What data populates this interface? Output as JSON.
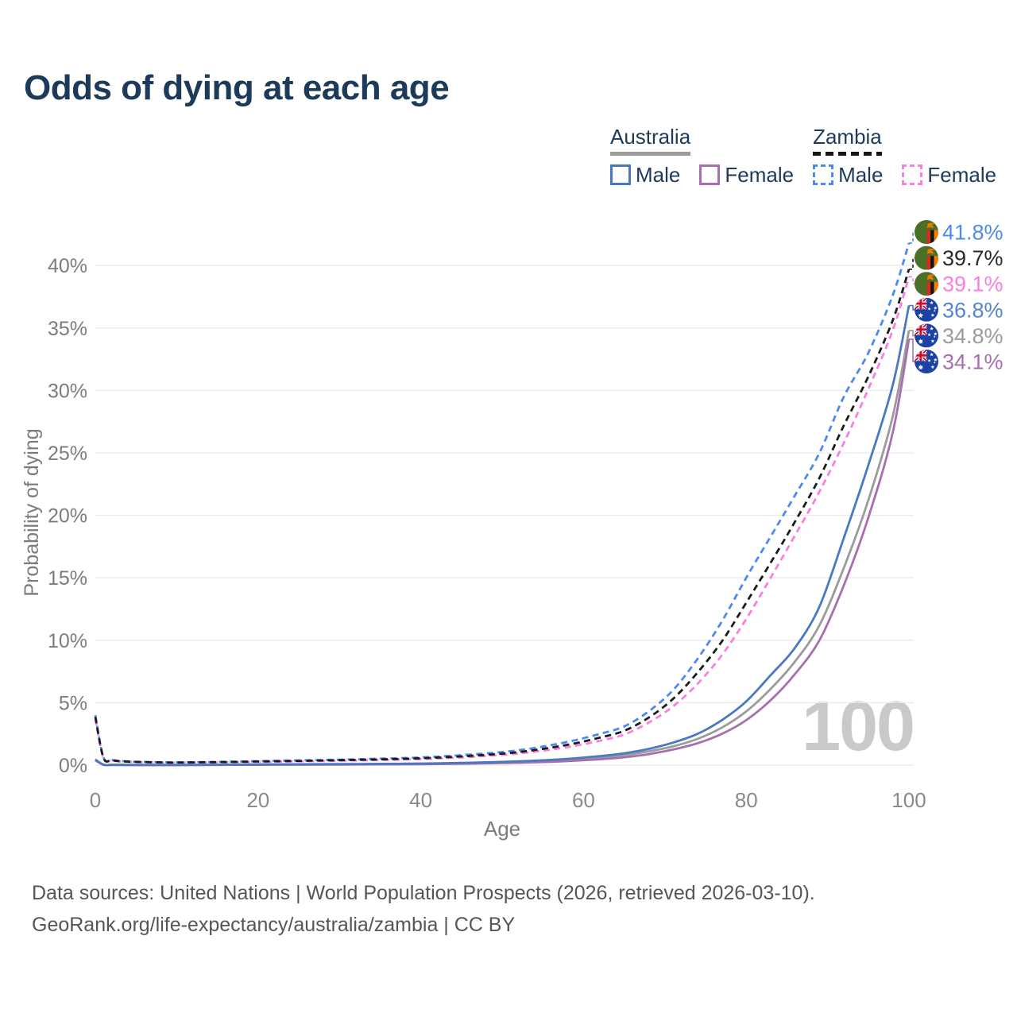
{
  "title": "Odds of dying at each age",
  "watermark": "100",
  "footer": {
    "line1": "Data sources: United Nations | World Population Prospects (2026, retrieved 2026-03-10).",
    "line2": "GeoRank.org/life-expectancy/australia/zambia | CC BY"
  },
  "legend": {
    "groups": [
      {
        "id": "australia",
        "label": "Australia",
        "line_style": "solid",
        "underline_color": "#9b9b9b",
        "items": [
          {
            "id": "australia-male",
            "label": "Male",
            "color": "#4a79c2"
          },
          {
            "id": "australia-female",
            "label": "Female",
            "color": "#a76fae"
          }
        ]
      },
      {
        "id": "zambia",
        "label": "Zambia",
        "line_style": "dashed",
        "underline_color": "#161616",
        "items": [
          {
            "id": "zambia-male",
            "label": "Male",
            "color": "#4d8af0"
          },
          {
            "id": "zambia-female",
            "label": "Female",
            "color": "#f97fe0"
          }
        ]
      }
    ]
  },
  "chart_data": {
    "type": "line",
    "title": "Odds of dying at each age",
    "xlabel": "Age",
    "ylabel": "Probability of dying",
    "xlim": [
      0,
      100
    ],
    "ylim": [
      0,
      43
    ],
    "xticks": [
      0,
      20,
      40,
      60,
      80,
      100
    ],
    "yticks": [
      0,
      5,
      10,
      15,
      20,
      25,
      30,
      35,
      40
    ],
    "ytick_suffix": "%",
    "grid": "horizontal-only",
    "legend_position": "top-right",
    "x": [
      0,
      1,
      2,
      3,
      5,
      8,
      10,
      15,
      20,
      25,
      30,
      35,
      40,
      45,
      50,
      53,
      56,
      59,
      62,
      65,
      68,
      71,
      74,
      77,
      80,
      83,
      86,
      89,
      92,
      95,
      98,
      100
    ],
    "series": [
      {
        "id": "zambia-male",
        "name": "Zambia — Male",
        "country": "Zambia",
        "sex": "Male",
        "color": "#4d8af0",
        "dash": true,
        "flag": "zambia",
        "end_label": "41.8%",
        "label_color": "#4d8af0",
        "values": [
          4.0,
          0.62,
          0.42,
          0.34,
          0.27,
          0.23,
          0.22,
          0.26,
          0.32,
          0.38,
          0.44,
          0.52,
          0.62,
          0.8,
          1.05,
          1.28,
          1.6,
          2.0,
          2.5,
          3.1,
          4.3,
          6.0,
          8.5,
          11.5,
          15.0,
          18.3,
          21.6,
          25.0,
          29.5,
          33.0,
          37.6,
          41.8
        ]
      },
      {
        "id": "zambia-both",
        "name": "Zambia — Both sexes",
        "country": "Zambia",
        "sex": "Both sexes",
        "color": "#1c1c1c",
        "dash": true,
        "flag": "zambia",
        "end_label": "39.7%",
        "label_color": "#2a2a2a",
        "values": [
          3.85,
          0.59,
          0.4,
          0.32,
          0.26,
          0.22,
          0.21,
          0.24,
          0.29,
          0.34,
          0.4,
          0.46,
          0.55,
          0.7,
          0.92,
          1.12,
          1.4,
          1.75,
          2.2,
          2.75,
          3.8,
          5.3,
          7.4,
          9.9,
          13.0,
          16.2,
          19.5,
          23.0,
          27.2,
          31.1,
          35.6,
          39.7
        ]
      },
      {
        "id": "zambia-female",
        "name": "Zambia — Female",
        "country": "Zambia",
        "sex": "Female",
        "color": "#f97fe0",
        "dash": true,
        "flag": "zambia",
        "end_label": "39.1%",
        "label_color": "#f97fe0",
        "values": [
          3.7,
          0.56,
          0.38,
          0.3,
          0.24,
          0.2,
          0.19,
          0.22,
          0.26,
          0.3,
          0.35,
          0.41,
          0.49,
          0.62,
          0.82,
          1.0,
          1.25,
          1.55,
          1.95,
          2.45,
          3.4,
          4.7,
          6.5,
          8.8,
          11.7,
          15.0,
          18.4,
          21.9,
          25.8,
          30.1,
          34.8,
          39.1
        ]
      },
      {
        "id": "australia-male",
        "name": "Australia — Male",
        "country": "Australia",
        "sex": "Male",
        "color": "#4a79c2",
        "dash": false,
        "flag": "australia",
        "end_label": "36.8%",
        "label_color": "#5585cb",
        "values": [
          0.45,
          0.04,
          0.025,
          0.02,
          0.015,
          0.012,
          0.012,
          0.03,
          0.06,
          0.07,
          0.08,
          0.1,
          0.13,
          0.18,
          0.26,
          0.33,
          0.42,
          0.55,
          0.72,
          0.95,
          1.3,
          1.8,
          2.5,
          3.6,
          5.1,
          7.2,
          9.4,
          12.7,
          18.2,
          24.0,
          30.4,
          36.8
        ]
      },
      {
        "id": "australia-both",
        "name": "Australia — Both sexes",
        "country": "Australia",
        "sex": "Both sexes",
        "color": "#9b9b9b",
        "dash": false,
        "flag": "australia",
        "end_label": "34.8%",
        "label_color": "#9b9b9b",
        "values": [
          0.42,
          0.035,
          0.022,
          0.018,
          0.013,
          0.01,
          0.01,
          0.022,
          0.042,
          0.052,
          0.062,
          0.08,
          0.105,
          0.15,
          0.215,
          0.27,
          0.35,
          0.46,
          0.6,
          0.8,
          1.1,
          1.5,
          2.1,
          3.0,
          4.3,
          6.1,
          8.3,
          11.2,
          15.8,
          21.2,
          27.9,
          34.8
        ]
      },
      {
        "id": "australia-female",
        "name": "Australia — Female",
        "country": "Australia",
        "sex": "Female",
        "color": "#a76fae",
        "dash": false,
        "flag": "australia",
        "end_label": "34.1%",
        "label_color": "#a76fae",
        "values": [
          0.38,
          0.03,
          0.02,
          0.016,
          0.011,
          0.009,
          0.009,
          0.016,
          0.026,
          0.033,
          0.042,
          0.057,
          0.078,
          0.113,
          0.165,
          0.21,
          0.27,
          0.36,
          0.47,
          0.63,
          0.88,
          1.25,
          1.75,
          2.5,
          3.6,
          5.2,
          7.3,
          10.0,
          14.4,
          19.8,
          26.6,
          34.1
        ]
      }
    ]
  }
}
